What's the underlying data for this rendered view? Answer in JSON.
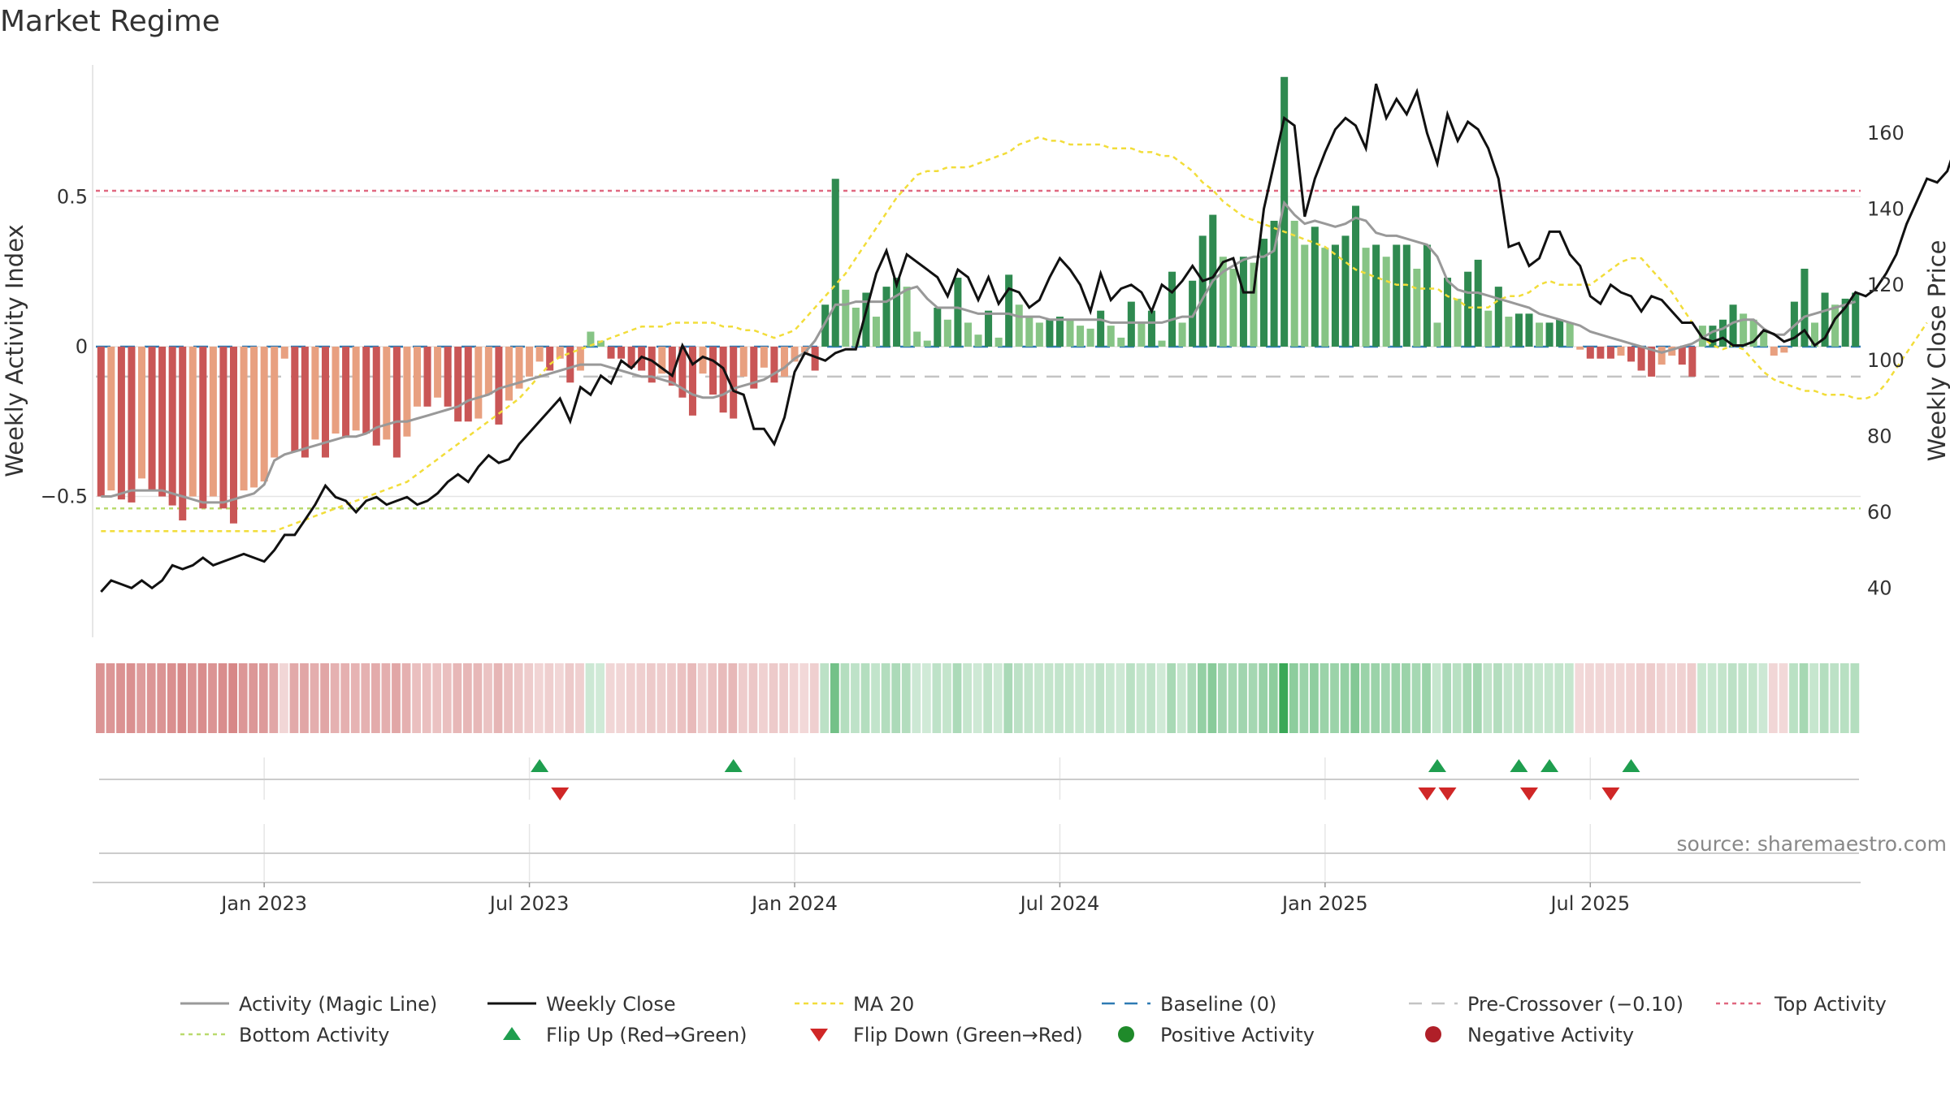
{
  "chart_data": {
    "type": "bar",
    "title": "Market Regime",
    "ylabel_left": "Weekly Activity Index",
    "ylabel_right": "Weekly Close Price",
    "source": "source: sharemaestro.com",
    "x_ticks": [
      "Jan 2023",
      "Jul 2023",
      "Jan 2024",
      "Jul 2024",
      "Jan 2025",
      "Jul 2025"
    ],
    "x_tick_weeks": [
      16,
      42,
      68,
      94,
      120,
      146
    ],
    "y_left_ticks": [
      {
        "v": 0.5,
        "label": "0.5"
      },
      {
        "v": 0,
        "label": "0"
      },
      {
        "v": -0.5,
        "label": "−0.5"
      }
    ],
    "ylim_left": [
      -0.97,
      0.94
    ],
    "y_right_ticks": [
      40,
      60,
      80,
      100,
      120,
      140,
      160
    ],
    "ylim_right": [
      27,
      178
    ],
    "baseline": 0,
    "pre_crossover": -0.1,
    "top_activity": 0.52,
    "bottom_activity": -0.54,
    "colors": {
      "neg_strong": "#c95656",
      "neg_weak": "#e8a080",
      "pos_strong": "#2f8a50",
      "pos_weak": "#86c485",
      "magic_line": "#999999",
      "weekly_close": "#111111",
      "ma20": "#f2dd3a",
      "baseline": "#2e7ab3",
      "pre_crossover": "#c4c4c4",
      "top_activity": "#e06880",
      "bottom_activity": "#b9da6d",
      "flip_up": "#1f9e4f",
      "flip_down": "#d02727",
      "positive_dot": "#1f8a2a",
      "negative_dot": "#b01f28"
    },
    "activity": [
      -0.5,
      -0.48,
      -0.51,
      -0.52,
      -0.44,
      -0.48,
      -0.5,
      -0.53,
      -0.58,
      -0.5,
      -0.54,
      -0.5,
      -0.54,
      -0.59,
      -0.48,
      -0.47,
      -0.45,
      -0.37,
      -0.04,
      -0.35,
      -0.37,
      -0.31,
      -0.37,
      -0.29,
      -0.3,
      -0.28,
      -0.29,
      -0.33,
      -0.31,
      -0.37,
      -0.3,
      -0.2,
      -0.2,
      -0.17,
      -0.2,
      -0.25,
      -0.25,
      -0.24,
      -0.16,
      -0.26,
      -0.18,
      -0.14,
      -0.1,
      -0.05,
      -0.08,
      -0.04,
      -0.12,
      -0.08,
      0.05,
      0.02,
      -0.04,
      -0.04,
      -0.07,
      -0.08,
      -0.12,
      -0.09,
      -0.13,
      -0.17,
      -0.23,
      -0.09,
      -0.16,
      -0.22,
      -0.24,
      -0.1,
      -0.14,
      -0.07,
      -0.12,
      -0.1,
      -0.05,
      -0.02,
      -0.08,
      0.14,
      0.56,
      0.19,
      0.13,
      0.18,
      0.1,
      0.2,
      0.23,
      0.2,
      0.05,
      0.02,
      0.13,
      0.09,
      0.23,
      0.08,
      0.04,
      0.12,
      0.03,
      0.24,
      0.14,
      0.1,
      0.08,
      0.09,
      0.1,
      0.09,
      0.07,
      0.06,
      0.12,
      0.07,
      0.03,
      0.15,
      0.08,
      0.12,
      0.02,
      0.25,
      0.08,
      0.22,
      0.37,
      0.44,
      0.3,
      0.26,
      0.3,
      0.28,
      0.36,
      0.42,
      0.9,
      0.42,
      0.34,
      0.4,
      0.33,
      0.34,
      0.37,
      0.47,
      0.33,
      0.34,
      0.3,
      0.34,
      0.34,
      0.26,
      0.34,
      0.08,
      0.23,
      0.16,
      0.25,
      0.29,
      0.12,
      0.2,
      0.1,
      0.11,
      0.11,
      0.08,
      0.08,
      0.09,
      0.08,
      -0.01,
      -0.04,
      -0.04,
      -0.04,
      -0.03,
      -0.05,
      -0.08,
      -0.1,
      -0.06,
      -0.03,
      -0.06,
      -0.1,
      0.07,
      0.07,
      0.09,
      0.14,
      0.11,
      0.09,
      0.05,
      -0.03,
      -0.02,
      0.15,
      0.26,
      0.08,
      0.18,
      0.14,
      0.16,
      0.18
    ],
    "activity_magic_line": [
      -0.5,
      -0.5,
      -0.49,
      -0.48,
      -0.48,
      -0.48,
      -0.48,
      -0.49,
      -0.5,
      -0.51,
      -0.52,
      -0.52,
      -0.52,
      -0.51,
      -0.5,
      -0.49,
      -0.46,
      -0.38,
      -0.36,
      -0.35,
      -0.34,
      -0.33,
      -0.32,
      -0.31,
      -0.3,
      -0.3,
      -0.29,
      -0.27,
      -0.26,
      -0.25,
      -0.25,
      -0.24,
      -0.23,
      -0.22,
      -0.21,
      -0.2,
      -0.18,
      -0.17,
      -0.16,
      -0.14,
      -0.13,
      -0.12,
      -0.11,
      -0.1,
      -0.09,
      -0.08,
      -0.07,
      -0.06,
      -0.06,
      -0.06,
      -0.07,
      -0.08,
      -0.09,
      -0.1,
      -0.1,
      -0.11,
      -0.12,
      -0.14,
      -0.16,
      -0.17,
      -0.17,
      -0.16,
      -0.14,
      -0.13,
      -0.12,
      -0.11,
      -0.09,
      -0.07,
      -0.04,
      -0.02,
      0.02,
      0.08,
      0.14,
      0.14,
      0.15,
      0.15,
      0.15,
      0.15,
      0.17,
      0.19,
      0.2,
      0.16,
      0.13,
      0.13,
      0.13,
      0.12,
      0.11,
      0.11,
      0.11,
      0.11,
      0.1,
      0.1,
      0.1,
      0.09,
      0.09,
      0.09,
      0.09,
      0.09,
      0.09,
      0.08,
      0.08,
      0.08,
      0.08,
      0.08,
      0.08,
      0.09,
      0.1,
      0.1,
      0.16,
      0.22,
      0.25,
      0.27,
      0.29,
      0.3,
      0.3,
      0.32,
      0.48,
      0.44,
      0.41,
      0.42,
      0.41,
      0.4,
      0.41,
      0.43,
      0.42,
      0.38,
      0.37,
      0.37,
      0.36,
      0.35,
      0.34,
      0.3,
      0.22,
      0.19,
      0.18,
      0.18,
      0.17,
      0.16,
      0.15,
      0.14,
      0.13,
      0.11,
      0.1,
      0.09,
      0.08,
      0.07,
      0.05,
      0.04,
      0.03,
      0.02,
      0.01,
      0,
      -0.01,
      -0.02,
      -0.01,
      0,
      0.01,
      0.03,
      0.05,
      0.06,
      0.08,
      0.09,
      0.09,
      0.06,
      0.04,
      0.04,
      0.07,
      0.1,
      0.11,
      0.12,
      0.13,
      0.14,
      0.15
    ],
    "weekly_close": [
      39,
      42,
      41,
      40,
      42,
      40,
      42,
      46,
      45,
      46,
      48,
      46,
      47,
      48,
      49,
      48,
      47,
      50,
      54,
      54,
      58,
      62,
      67,
      64,
      63,
      60,
      63,
      64,
      62,
      63,
      64,
      62,
      63,
      65,
      68,
      70,
      68,
      72,
      75,
      73,
      74,
      78,
      81,
      84,
      87,
      90,
      84,
      93,
      91,
      96,
      94,
      100,
      98,
      101,
      100,
      98,
      96,
      104,
      99,
      101,
      100,
      98,
      92,
      91,
      82,
      82,
      78,
      85,
      97,
      102,
      101,
      100,
      102,
      103,
      103,
      113,
      123,
      129,
      120,
      128,
      126,
      124,
      122,
      117,
      124,
      122,
      116,
      122,
      115,
      119,
      118,
      114,
      116,
      122,
      127,
      124,
      120,
      113,
      123,
      116,
      119,
      120,
      118,
      113,
      120,
      118,
      121,
      125,
      121,
      122,
      126,
      127,
      118,
      118,
      140,
      152,
      164,
      162,
      138,
      148,
      155,
      161,
      164,
      162,
      156,
      173,
      164,
      169,
      165,
      171,
      160,
      152,
      165,
      158,
      163,
      161,
      156,
      148,
      130,
      131,
      125,
      127,
      134,
      134,
      128,
      125,
      117,
      115,
      120,
      118,
      117,
      113,
      117,
      116,
      113,
      110,
      110,
      106,
      105,
      106,
      104,
      104,
      105,
      108,
      107,
      105,
      106,
      108,
      104,
      106,
      111,
      114,
      118,
      117,
      119,
      123,
      128,
      136,
      142,
      148,
      147,
      150,
      158,
      155,
      147
    ],
    "ma20": [
      55,
      55,
      55,
      55,
      55,
      55,
      55,
      55,
      55,
      55,
      55,
      55,
      55,
      55,
      55,
      55,
      55,
      55,
      56,
      57,
      58,
      59,
      60,
      61,
      62,
      63,
      64,
      65,
      66,
      67,
      68,
      70,
      72,
      74,
      76,
      78,
      80,
      82,
      84,
      86,
      88,
      90,
      93,
      96,
      99,
      101,
      102,
      103,
      104,
      105,
      106,
      107,
      108,
      109,
      109,
      109,
      110,
      110,
      110,
      110,
      110,
      109,
      109,
      108,
      108,
      107,
      106,
      107,
      108,
      111,
      114,
      117,
      120,
      123,
      127,
      131,
      135,
      139,
      143,
      146,
      149,
      150,
      150,
      151,
      151,
      151,
      152,
      153,
      154,
      155,
      157,
      158,
      159,
      158,
      158,
      157,
      157,
      157,
      157,
      156,
      156,
      156,
      155,
      155,
      154,
      154,
      152,
      150,
      147,
      145,
      142,
      140,
      138,
      137,
      136,
      135,
      134,
      133,
      132,
      131,
      130,
      128,
      126,
      124,
      123,
      122,
      121,
      120,
      120,
      119,
      119,
      119,
      117,
      116,
      114,
      114,
      114,
      116,
      117,
      117,
      118,
      120,
      121,
      120,
      120,
      120,
      120,
      122,
      124,
      126,
      127,
      127,
      124,
      121,
      118,
      114,
      110,
      106,
      104,
      103,
      104,
      103,
      100,
      97,
      95,
      94,
      93,
      92,
      92,
      91,
      91,
      91,
      90,
      90,
      91,
      94,
      98,
      102,
      106,
      110
    ],
    "flip_up_weeks": [
      43,
      62,
      131,
      139,
      142,
      150
    ],
    "flip_down_weeks": [
      45,
      130,
      132,
      140,
      148
    ],
    "legend": [
      "Activity (Magic Line)",
      "Weekly Close",
      "MA 20",
      "Baseline (0)",
      "Pre-Crossover (−0.10)",
      "Top Activity",
      "Bottom Activity",
      "Flip Up (Red→Green)",
      "Flip Down (Green→Red)",
      "Positive Activity",
      "Negative Activity"
    ]
  }
}
